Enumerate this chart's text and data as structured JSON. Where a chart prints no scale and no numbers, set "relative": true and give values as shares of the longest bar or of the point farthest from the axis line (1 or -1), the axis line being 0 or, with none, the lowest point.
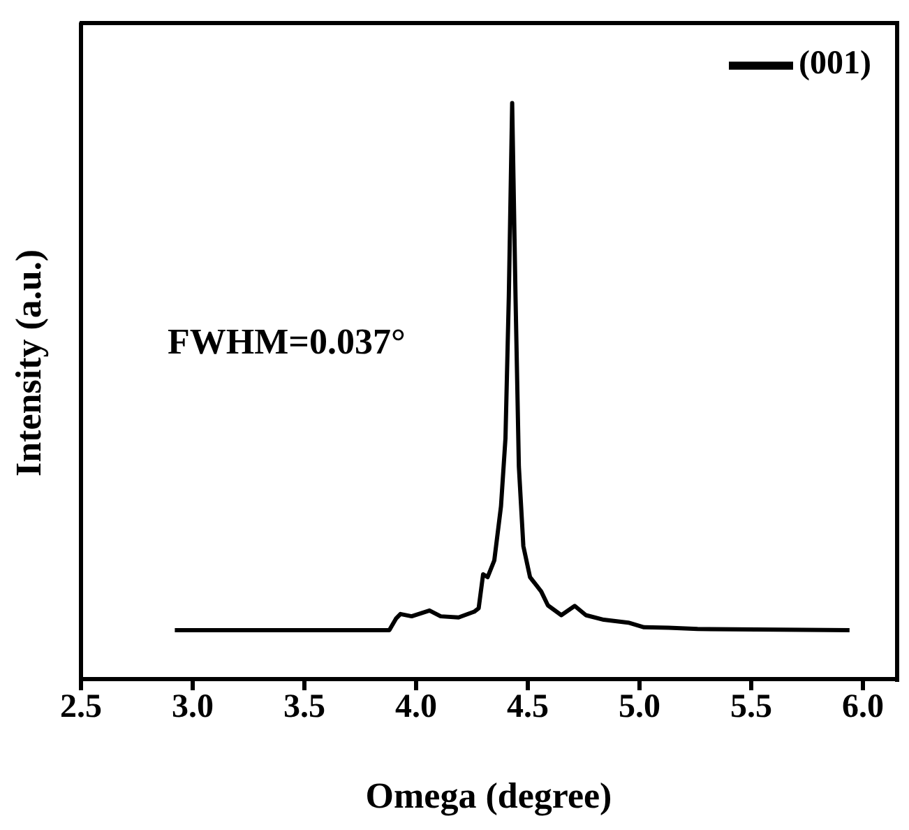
{
  "chart_data": {
    "type": "line",
    "relative": true,
    "xlabel": "Omega (degree)",
    "ylabel": "Intensity (a.u.)",
    "xlim": [
      2.5,
      6.15
    ],
    "xticks": [
      2.5,
      {
        "value": 3,
        "label": "3.0"
      },
      3.5,
      {
        "value": 4,
        "label": "4.0"
      },
      4.5,
      {
        "value": 5,
        "label": "5.0"
      },
      5.5,
      {
        "value": 6,
        "label": "6.0"
      }
    ],
    "legend": "top right",
    "marker": "none",
    "annotations": [
      "FWHM=0.037°"
    ],
    "series": [
      {
        "name": "(001)",
        "color": "#000000",
        "x": [
          2.92,
          3.5,
          3.88,
          3.91,
          3.93,
          3.98,
          4.06,
          4.11,
          4.19,
          4.26,
          4.28,
          4.3,
          4.32,
          4.35,
          4.38,
          4.4,
          4.415,
          4.43,
          4.445,
          4.46,
          4.48,
          4.51,
          4.56,
          4.59,
          4.65,
          4.71,
          4.76,
          4.84,
          4.95,
          5.02,
          5.13,
          5.26,
          5.94
        ],
        "values": [
          0.085,
          0.085,
          0.085,
          0.105,
          0.113,
          0.109,
          0.119,
          0.109,
          0.107,
          0.117,
          0.123,
          0.182,
          0.177,
          0.206,
          0.3,
          0.418,
          0.664,
          1,
          0.664,
          0.369,
          0.231,
          0.177,
          0.152,
          0.128,
          0.111,
          0.127,
          0.111,
          0.103,
          0.098,
          0.09,
          0.089,
          0.087,
          0.085
        ]
      }
    ]
  }
}
